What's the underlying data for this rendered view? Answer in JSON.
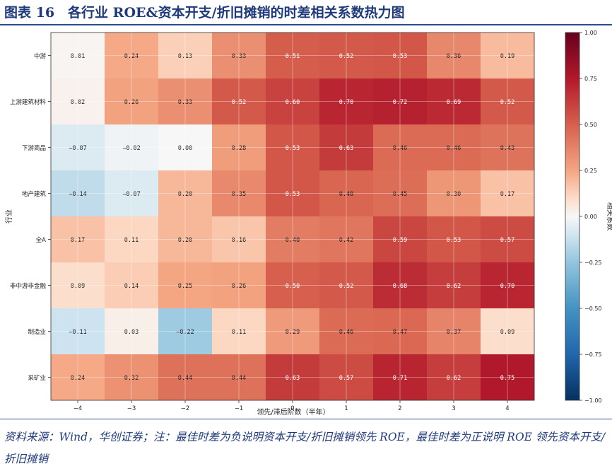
{
  "figure": {
    "title": "图表 16　各行业 ROE&资本开支/折旧摊销的时差相关系数热力图",
    "source_note": "资料来源：Wind，华创证券；注：最佳时差为负说明资本开支/折旧摊销领先 ROE，最佳时差为正说明 ROE 领先资本开支/折旧摊销"
  },
  "chart_data": {
    "type": "heatmap",
    "title": "",
    "xlabel": "领先/滞后阶数（半年）",
    "ylabel": "行业",
    "colorbar_label": "相关系数",
    "x": [
      "-4",
      "-3",
      "-2",
      "-1",
      "0",
      "1",
      "2",
      "3",
      "4"
    ],
    "y": [
      "中游",
      "上游建筑材料",
      "下游商品",
      "地产建筑",
      "全A",
      "非中游非金融",
      "制造业",
      "采矿业"
    ],
    "values": [
      [
        0.01,
        0.24,
        0.13,
        0.33,
        0.51,
        0.52,
        0.53,
        0.36,
        0.19
      ],
      [
        0.02,
        0.26,
        0.33,
        0.52,
        0.6,
        0.7,
        0.72,
        0.69,
        0.52
      ],
      [
        -0.07,
        -0.02,
        0.0,
        0.28,
        0.53,
        0.63,
        0.46,
        0.46,
        0.43
      ],
      [
        -0.14,
        -0.07,
        0.2,
        0.35,
        0.53,
        0.48,
        0.45,
        0.3,
        0.17
      ],
      [
        0.17,
        0.11,
        0.2,
        0.16,
        0.4,
        0.42,
        0.59,
        0.53,
        0.57
      ],
      [
        0.09,
        0.14,
        0.25,
        0.26,
        0.5,
        0.52,
        0.68,
        0.62,
        0.7
      ],
      [
        -0.11,
        0.03,
        -0.22,
        0.11,
        0.29,
        0.46,
        0.47,
        0.37,
        0.09
      ],
      [
        0.24,
        0.32,
        0.44,
        0.44,
        0.63,
        0.57,
        0.71,
        0.62,
        0.75
      ]
    ],
    "value_format": "0.00",
    "colorscale": "RdBu_r",
    "vmin": -1.0,
    "vmax": 1.0,
    "colorbar_ticks": [
      1.0,
      0.75,
      0.5,
      0.25,
      0.0,
      -0.25,
      -0.5,
      -0.75,
      -1.0
    ],
    "grid": true
  }
}
